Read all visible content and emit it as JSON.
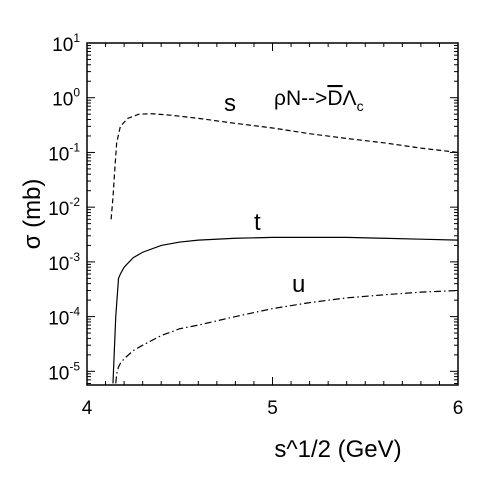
{
  "chart_data": {
    "type": "line",
    "title": "",
    "xlabel": "s^1/2 (GeV)",
    "ylabel": "σ (mb)",
    "xlim": [
      4,
      6
    ],
    "ylim_log10": [
      -5.25,
      1
    ],
    "y_scale": "log",
    "x_ticks": [
      4,
      5,
      6
    ],
    "x_tick_labels": [
      "4",
      "5",
      "6"
    ],
    "y_tick_exponents": [
      -5,
      -4,
      -3,
      -2,
      -1,
      0,
      1
    ],
    "y_tick_base": "10",
    "grid": false,
    "legend": "none",
    "annotations": {
      "reaction": {
        "rho": "ρ",
        "part1": "N-->",
        "dbar": "D",
        "lambda": "Λ",
        "sub": "c"
      },
      "s_label": "s",
      "t_label": "t",
      "u_label": "u"
    },
    "series": [
      {
        "style": "dashed",
        "x": [
          4.13,
          4.14,
          4.15,
          4.16,
          4.18,
          4.22,
          4.28,
          4.35,
          4.45,
          4.6,
          4.8,
          5.0,
          5.2,
          5.4,
          5.6,
          5.8,
          6.0
        ],
        "y": [
          0.006,
          0.015,
          0.05,
          0.15,
          0.3,
          0.42,
          0.5,
          0.51,
          0.48,
          0.42,
          0.34,
          0.28,
          0.22,
          0.18,
          0.15,
          0.12,
          0.1
        ]
      },
      {
        "style": "solid",
        "x": [
          4.14,
          4.155,
          4.17,
          4.18,
          4.2,
          4.25,
          4.3,
          4.4,
          4.5,
          4.6,
          4.8,
          5.0,
          5.2,
          5.4,
          5.6,
          5.8,
          6.0
        ],
        "y": [
          6e-06,
          0.0001,
          0.0005,
          0.0006,
          0.0008,
          0.0012,
          0.0015,
          0.002,
          0.0023,
          0.0025,
          0.0027,
          0.0028,
          0.0028,
          0.0028,
          0.0027,
          0.0026,
          0.0025
        ]
      },
      {
        "style": "dash-dot",
        "x": [
          4.155,
          4.16,
          4.17,
          4.18,
          4.2,
          4.25,
          4.3,
          4.4,
          4.5,
          4.6,
          4.8,
          5.0,
          5.2,
          5.4,
          5.6,
          5.8,
          6.0
        ],
        "y": [
          6e-06,
          9e-06,
          1.2e-05,
          1.4e-05,
          1.7e-05,
          2.4e-05,
          3e-05,
          4.5e-05,
          6e-05,
          7e-05,
          0.0001,
          0.00014,
          0.00018,
          0.00022,
          0.00025,
          0.00028,
          0.0003
        ]
      }
    ]
  }
}
